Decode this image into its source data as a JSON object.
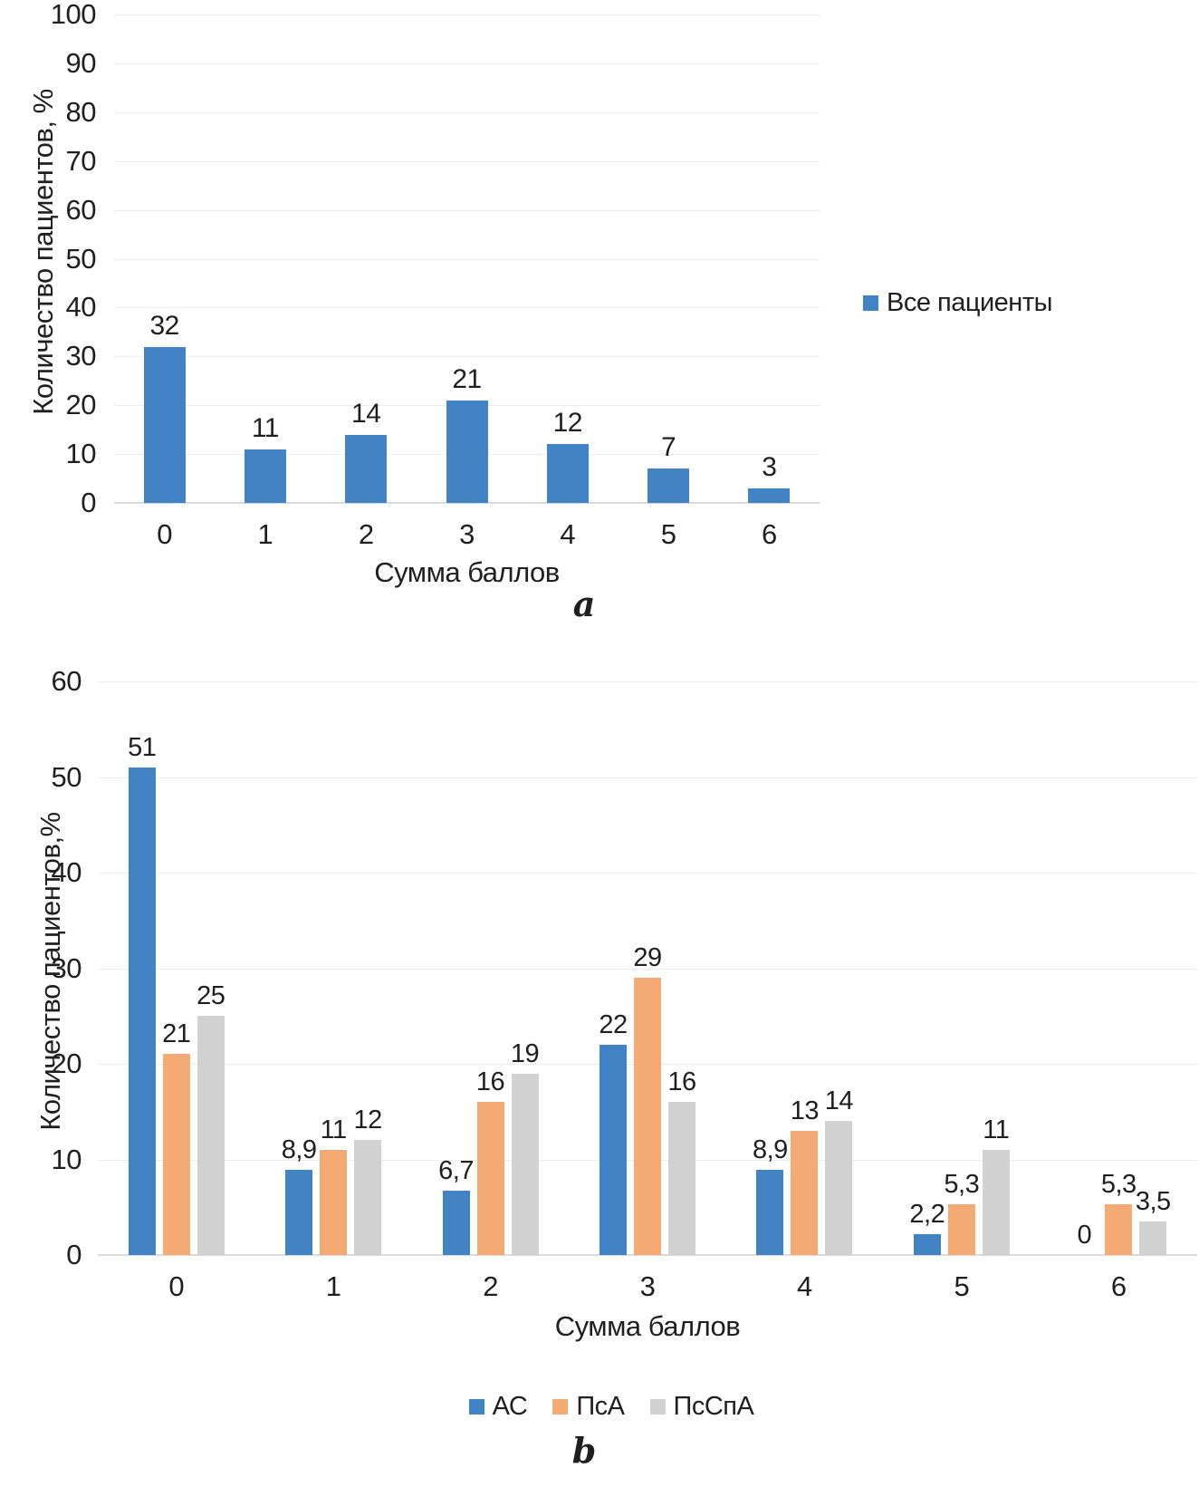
{
  "panels": {
    "a": "a",
    "b": "b"
  },
  "chart_data": [
    {
      "type": "bar",
      "panel": "a",
      "title": "",
      "categories": [
        "0",
        "1",
        "2",
        "3",
        "4",
        "5",
        "6"
      ],
      "series": [
        {
          "name": "Все пациенты",
          "color": "#4183C4",
          "values": [
            32,
            11,
            14,
            21,
            12,
            7,
            3
          ],
          "labels": [
            "32",
            "11",
            "14",
            "21",
            "12",
            "7",
            "3"
          ]
        }
      ],
      "xlabel": "Сумма баллов",
      "ylabel": "Количество пациентов, %",
      "ylim": [
        0,
        100
      ],
      "yticks": [
        0,
        10,
        20,
        30,
        40,
        50,
        60,
        70,
        80,
        90,
        100
      ],
      "grid": true,
      "legend_position": "right"
    },
    {
      "type": "bar",
      "panel": "b",
      "title": "",
      "categories": [
        "0",
        "1",
        "2",
        "3",
        "4",
        "5",
        "6"
      ],
      "series": [
        {
          "name": "АС",
          "color": "#4183C4",
          "values": [
            51,
            8.9,
            6.7,
            22,
            8.9,
            2.2,
            0
          ],
          "labels": [
            "51",
            "8,9",
            "6,7",
            "22",
            "8,9",
            "2,2",
            "0"
          ]
        },
        {
          "name": "ПсА",
          "color": "#F5AA73",
          "values": [
            21,
            11,
            16,
            29,
            13,
            5.3,
            5.3
          ],
          "labels": [
            "21",
            "11",
            "16",
            "29",
            "13",
            "5,3",
            "5,3"
          ]
        },
        {
          "name": "ПсСпА",
          "color": "#D1D1D1",
          "values": [
            25,
            12,
            19,
            16,
            14,
            11,
            3.5
          ],
          "labels": [
            "25",
            "12",
            "19",
            "16",
            "14",
            "11",
            "3,5"
          ]
        }
      ],
      "xlabel": "Сумма баллов",
      "ylabel": "Количество  пациентов,%",
      "ylim": [
        0,
        60
      ],
      "yticks": [
        0,
        10,
        20,
        30,
        40,
        50,
        60
      ],
      "grid": true,
      "legend_position": "bottom"
    }
  ]
}
